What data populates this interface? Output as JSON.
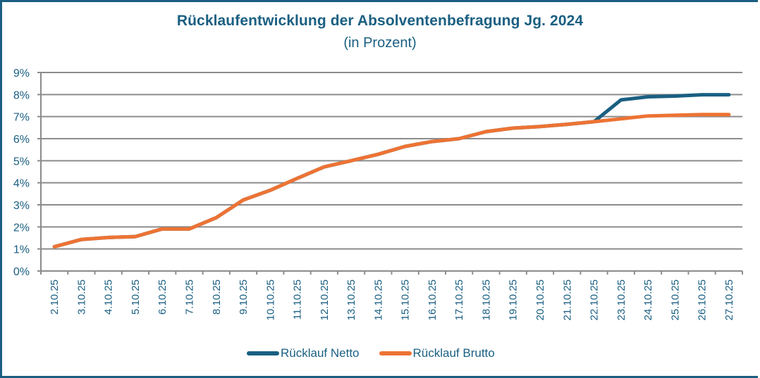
{
  "chart_data": {
    "type": "line",
    "title": "Rücklaufentwicklung der Absolventenbefragung Jg. 2024",
    "subtitle": "(in Prozent)",
    "xlabel": "",
    "ylabel": "",
    "ylim": [
      0,
      9
    ],
    "y_ticks": [
      "0%",
      "1%",
      "2%",
      "3%",
      "4%",
      "5%",
      "6%",
      "7%",
      "8%",
      "9%"
    ],
    "grid": true,
    "legend_position": "bottom",
    "categories": [
      "2.10.25",
      "3.10.25",
      "4.10.25",
      "5.10.25",
      "6.10.25",
      "7.10.25",
      "8.10.25",
      "9.10.25",
      "10.10.25",
      "11.10.25",
      "12.10.25",
      "13.10.25",
      "14.10.25",
      "15.10.25",
      "16.10.25",
      "17.10.25",
      "18.10.25",
      "19.10.25",
      "20.10.25",
      "21.10.25",
      "22.10.25",
      "23.10.25",
      "24.10.25",
      "25.10.25",
      "26.10.25",
      "27.10.25"
    ],
    "series": [
      {
        "name": "Rücklauf Netto",
        "color": "#1a5f82",
        "values": [
          1.1,
          1.43,
          1.52,
          1.56,
          1.91,
          1.91,
          2.42,
          3.22,
          3.66,
          4.2,
          4.72,
          5.0,
          5.29,
          5.65,
          5.87,
          6.0,
          6.32,
          6.48,
          6.55,
          6.65,
          6.77,
          7.76,
          7.9,
          7.93,
          7.99,
          7.99
        ]
      },
      {
        "name": "Rücklauf Brutto",
        "color": "#ed7334",
        "values": [
          1.1,
          1.43,
          1.52,
          1.56,
          1.91,
          1.91,
          2.42,
          3.22,
          3.66,
          4.2,
          4.72,
          5.0,
          5.29,
          5.65,
          5.87,
          6.0,
          6.32,
          6.48,
          6.55,
          6.65,
          6.77,
          6.9,
          7.03,
          7.06,
          7.09,
          7.09
        ]
      }
    ]
  },
  "colors": {
    "frame": "#1a5f82",
    "text": "#1a5f82",
    "grid": "#8c8c8c"
  }
}
